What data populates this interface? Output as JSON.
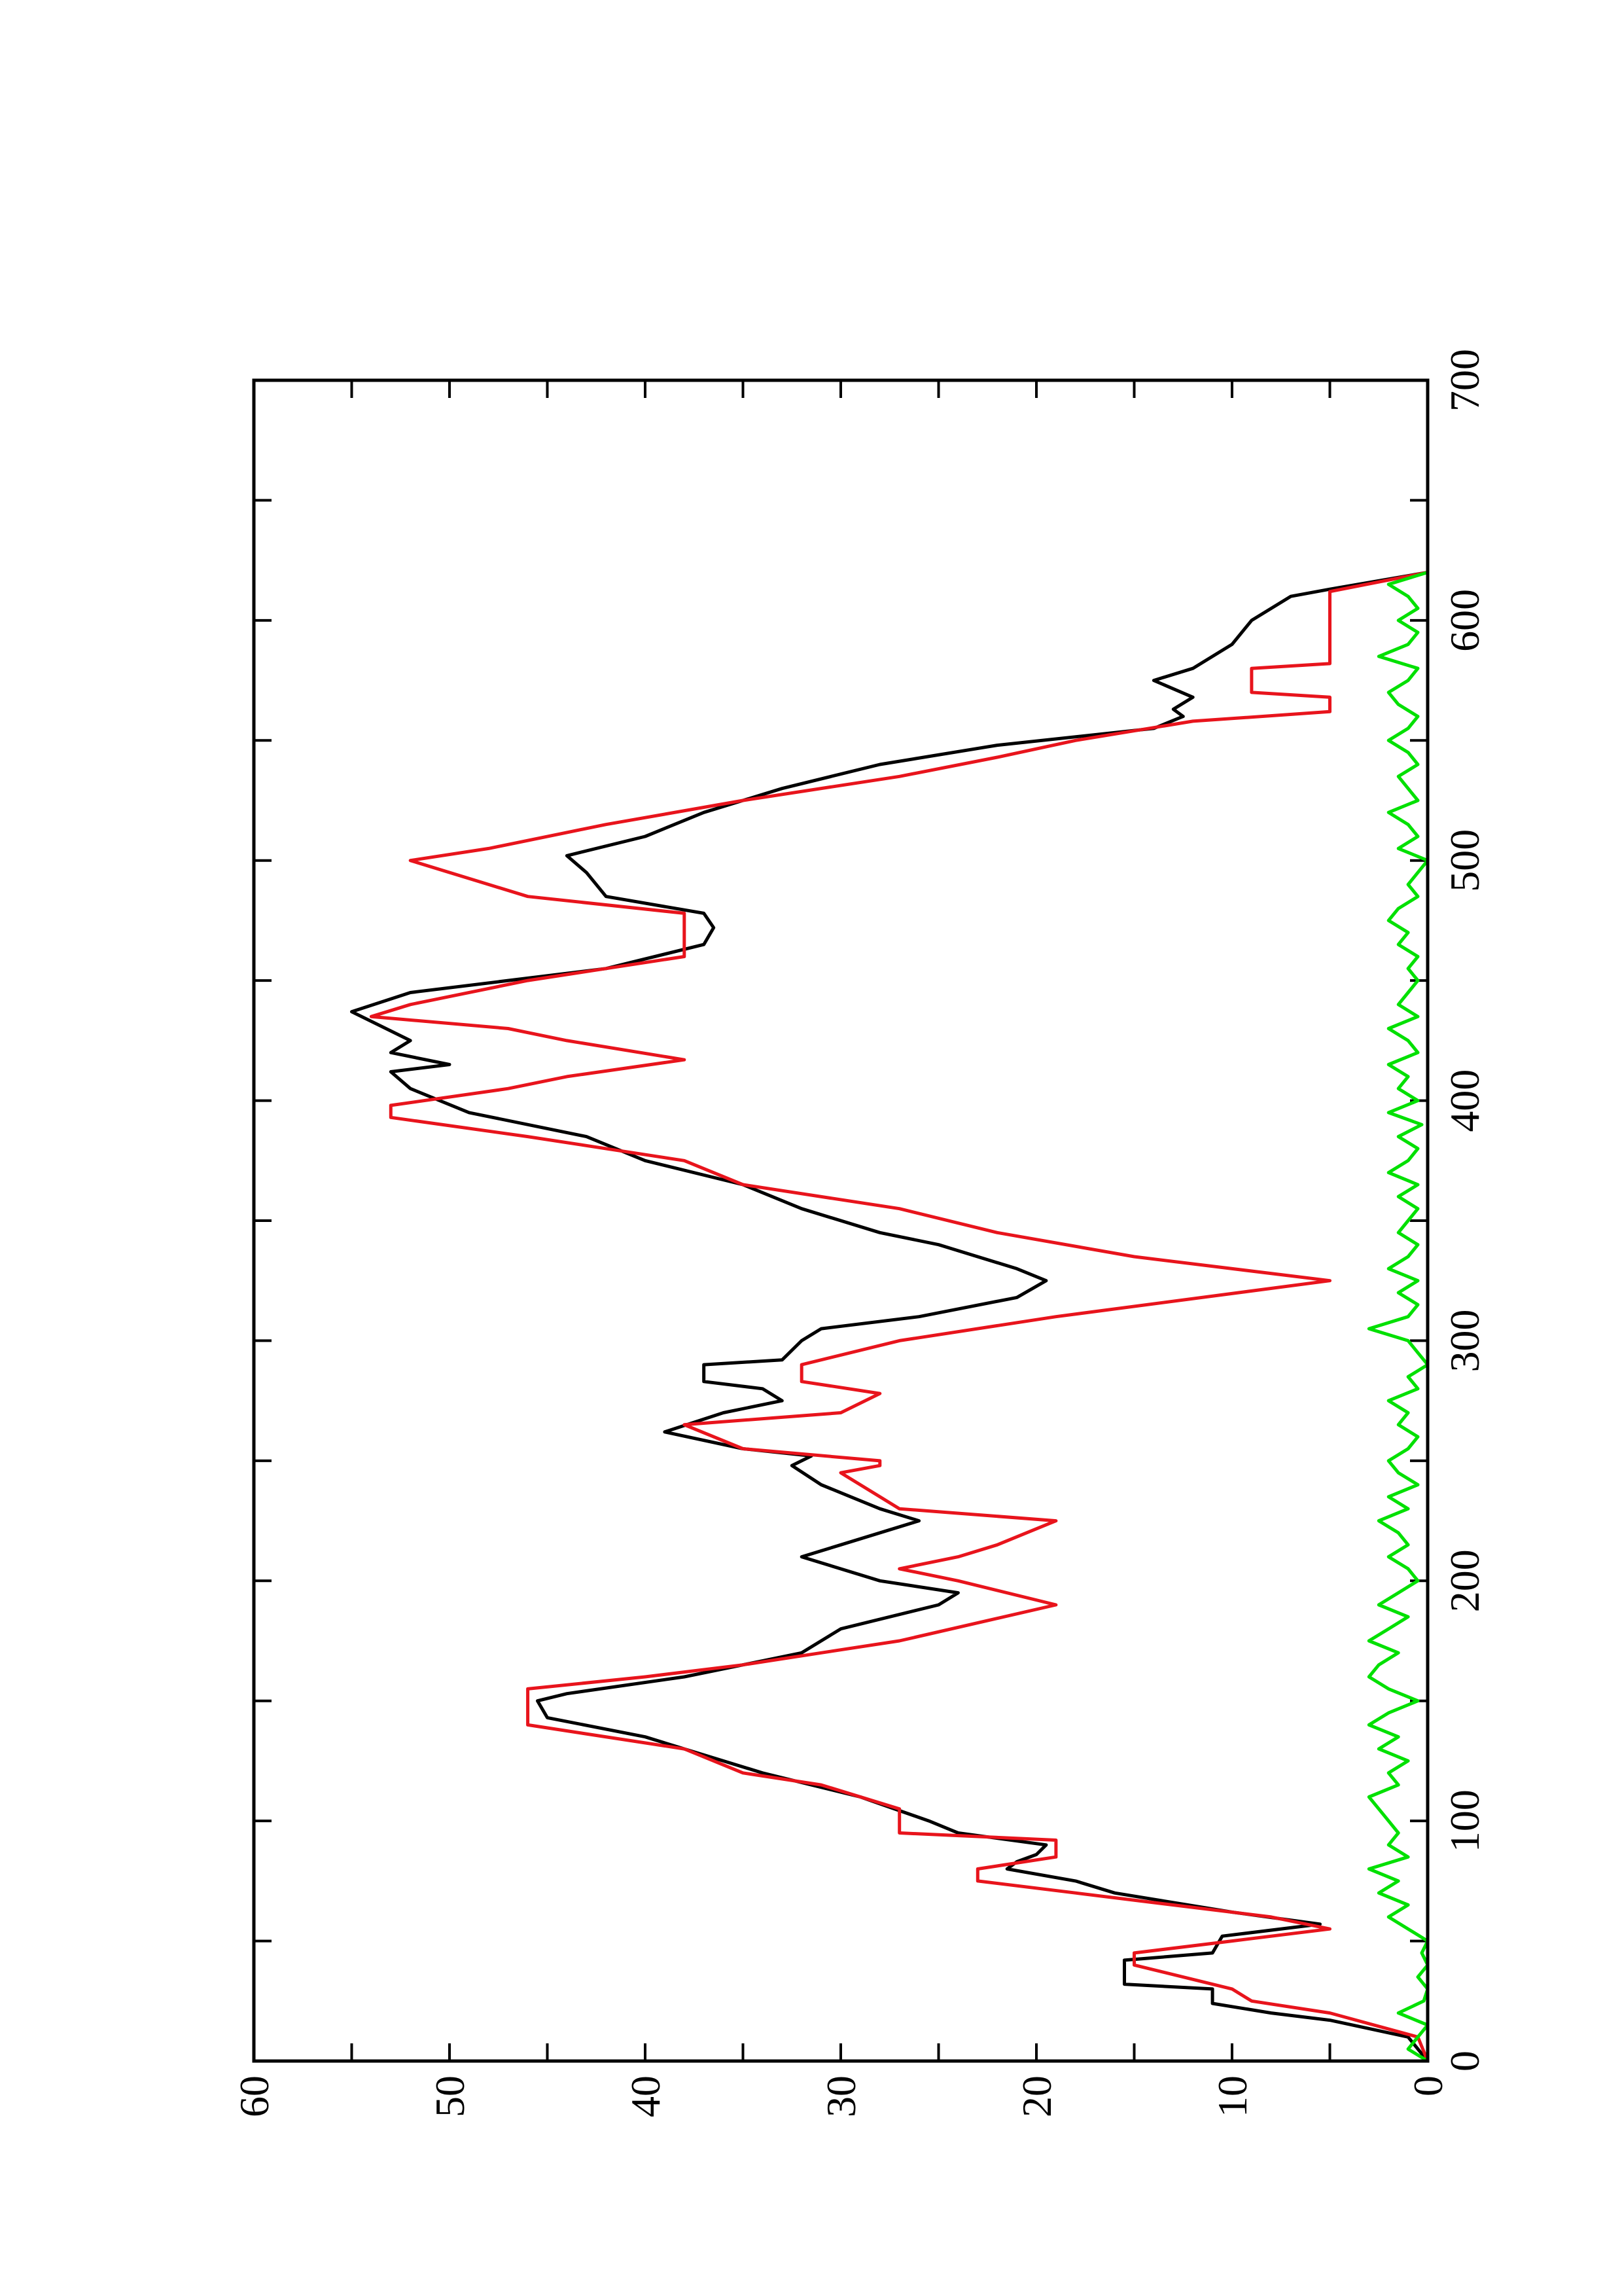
{
  "chart_data": {
    "type": "line",
    "xlim": [
      0,
      700
    ],
    "xticks": [
      0,
      100,
      200,
      300,
      400,
      500,
      600,
      700
    ],
    "xminorticks": [
      50,
      150,
      250,
      350,
      450,
      550,
      650
    ],
    "ylim": [
      0,
      60
    ],
    "yticks": [
      0,
      10,
      20,
      30,
      40,
      50,
      60
    ],
    "yminorticks": [
      5,
      15,
      25,
      35,
      45,
      55
    ],
    "series": [
      {
        "color": "#000000",
        "x": [
          0,
          10,
          17,
          20,
          24,
          30,
          32,
          42,
          45,
          52,
          57,
          62,
          70,
          75,
          80,
          83,
          86,
          90,
          95,
          100,
          110,
          120,
          130,
          135,
          143,
          150,
          153,
          160,
          170,
          175,
          180,
          190,
          195,
          200,
          210,
          215,
          225,
          230,
          240,
          248,
          252,
          255,
          262,
          270,
          275,
          280,
          283,
          290,
          292,
          300,
          305,
          310,
          318,
          325,
          330,
          340,
          345,
          355,
          365,
          375,
          385,
          395,
          405,
          412,
          415,
          420,
          425,
          437,
          445,
          455,
          465,
          472,
          478,
          485,
          495,
          502,
          510,
          520,
          530,
          540,
          548,
          555,
          560,
          563,
          568,
          575,
          580,
          590,
          600,
          610,
          613,
          620
        ],
        "values": [
          0,
          1,
          5,
          8,
          11,
          11,
          15.5,
          15.5,
          11,
          10.5,
          5.5,
          10,
          16,
          18,
          21.5,
          21,
          20,
          19.5,
          24,
          25.5,
          29,
          34,
          38,
          40,
          45,
          45.5,
          44,
          38,
          32,
          31,
          30,
          25,
          24,
          28,
          32,
          30,
          26,
          28,
          31,
          32.5,
          31.5,
          35,
          39,
          36,
          33,
          34,
          37,
          37,
          33,
          32,
          31,
          26,
          21,
          19.5,
          21,
          25,
          28,
          32,
          35,
          40,
          43,
          49,
          52,
          53,
          50,
          53,
          52,
          55,
          52,
          42,
          37,
          36.5,
          37,
          42,
          43,
          44,
          40,
          37,
          33,
          28,
          22,
          14,
          12.5,
          13,
          12,
          14,
          12,
          10,
          9,
          7,
          5,
          0
        ]
      },
      {
        "color": "#e8141c",
        "x": [
          0,
          10,
          20,
          25,
          30,
          40,
          45,
          50,
          55,
          60,
          70,
          75,
          80,
          85,
          92,
          95,
          105,
          115,
          120,
          130,
          140,
          155,
          160,
          165,
          170,
          175,
          190,
          200,
          205,
          210,
          215,
          225,
          230,
          245,
          248,
          250,
          255,
          265,
          270,
          278,
          283,
          290,
          300,
          310,
          325,
          335,
          345,
          355,
          365,
          375,
          385,
          393,
          398,
          405,
          410,
          417,
          425,
          430,
          435,
          440,
          450,
          460,
          478,
          485,
          490,
          500,
          505,
          515,
          525,
          535,
          543,
          550,
          558,
          562,
          568,
          570,
          580,
          582,
          612,
          620
        ],
        "values": [
          0,
          0.5,
          5,
          9,
          10,
          15,
          15,
          10,
          5,
          8,
          18,
          23,
          23,
          19,
          19,
          27,
          27,
          31,
          35,
          38,
          46,
          46,
          40,
          35,
          31,
          27,
          19,
          24,
          27,
          24,
          22,
          19,
          27,
          30,
          28,
          28,
          35,
          38,
          30,
          28,
          32,
          32,
          27,
          19,
          5,
          15,
          22,
          27,
          35,
          38,
          46,
          53,
          53,
          47,
          44,
          38,
          44,
          47,
          54,
          52,
          46,
          38,
          38,
          46,
          48,
          52,
          48,
          42,
          35,
          27,
          22,
          18,
          12,
          5,
          5,
          9,
          9,
          5,
          5,
          0
        ]
      },
      {
        "color": "#00e000",
        "x": [
          0,
          5,
          10,
          15,
          20,
          25,
          30,
          35,
          40,
          45,
          50,
          55,
          60,
          65,
          70,
          75,
          80,
          85,
          90,
          95,
          100,
          105,
          110,
          115,
          120,
          125,
          130,
          135,
          140,
          145,
          150,
          155,
          160,
          165,
          170,
          175,
          180,
          185,
          190,
          195,
          200,
          205,
          210,
          215,
          220,
          225,
          230,
          235,
          240,
          245,
          250,
          255,
          260,
          265,
          270,
          275,
          280,
          285,
          290,
          295,
          300,
          305,
          310,
          315,
          320,
          325,
          330,
          335,
          340,
          345,
          350,
          355,
          360,
          365,
          370,
          375,
          380,
          385,
          390,
          395,
          400,
          405,
          410,
          415,
          420,
          425,
          430,
          435,
          440,
          445,
          450,
          455,
          460,
          465,
          470,
          475,
          480,
          485,
          490,
          495,
          500,
          505,
          510,
          515,
          520,
          525,
          530,
          535,
          540,
          545,
          550,
          555,
          560,
          565,
          570,
          575,
          580,
          585,
          590,
          595,
          600,
          605,
          610,
          615,
          620
        ],
        "values": [
          0,
          1,
          0.5,
          0,
          1.5,
          0.2,
          0,
          0.5,
          0,
          0.3,
          0,
          1,
          2,
          1,
          2.5,
          1.5,
          3,
          1,
          2,
          1.5,
          2,
          2.5,
          3,
          1.5,
          2,
          1,
          2.5,
          1.5,
          3,
          2,
          0.5,
          2,
          3,
          2.5,
          1.5,
          3,
          2,
          1,
          2.5,
          1.5,
          0.5,
          1,
          2,
          1,
          1.5,
          2.5,
          1,
          2,
          0.5,
          1.5,
          2,
          1,
          0.5,
          1.5,
          1,
          2,
          0.5,
          1,
          0,
          0.5,
          1,
          3,
          1,
          0.5,
          1.5,
          0.5,
          2,
          1,
          0.5,
          1.5,
          1,
          0.5,
          1.5,
          0.5,
          2,
          1,
          0.5,
          1.5,
          0.3,
          2,
          0.5,
          1.5,
          1,
          2,
          0.5,
          1,
          2,
          0.5,
          1.5,
          1,
          0.5,
          1,
          0.5,
          1.5,
          1,
          2,
          1.5,
          0.5,
          1,
          0.5,
          0,
          1.5,
          0.5,
          1,
          2,
          0.5,
          1,
          1.5,
          0.5,
          1,
          2,
          1,
          0.5,
          1.5,
          2,
          1,
          0.5,
          2.5,
          1,
          0.5,
          1.5,
          0.5,
          1,
          2,
          0
        ]
      }
    ]
  }
}
